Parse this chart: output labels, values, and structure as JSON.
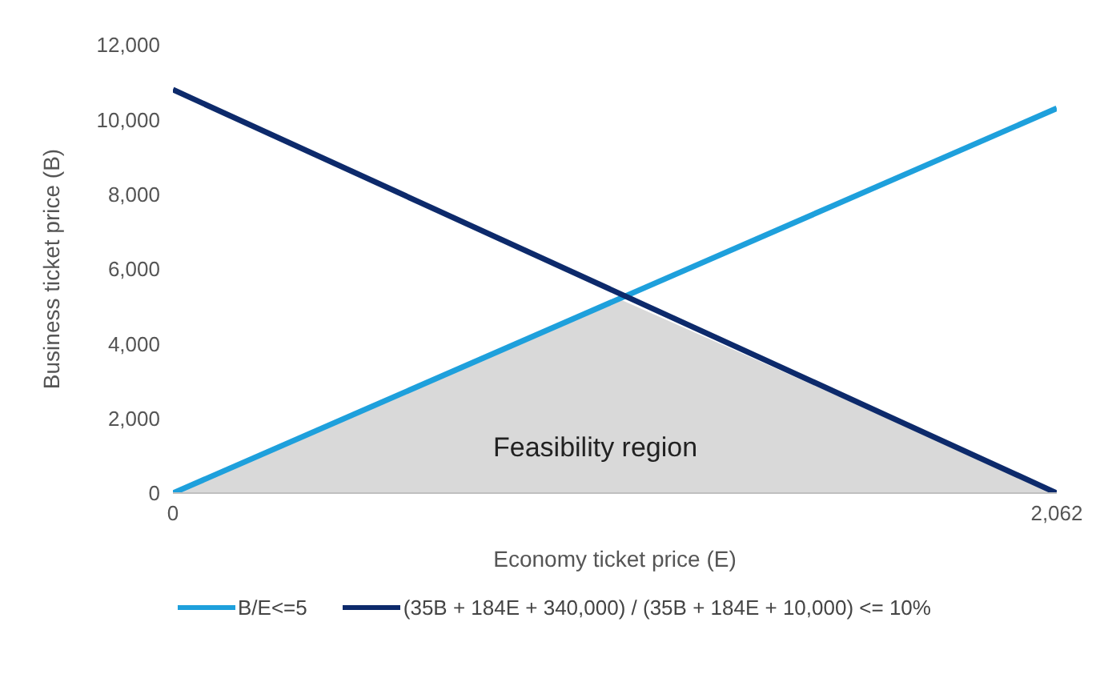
{
  "chart_data": {
    "type": "line",
    "xlabel": "Economy ticket price (E)",
    "ylabel": "Business ticket price (B)",
    "xlim": [
      0,
      2062
    ],
    "xticks": [
      0,
      {
        "value": 2062,
        "label": "2,062"
      }
    ],
    "ylim": [
      0,
      12000
    ],
    "yticks": [
      0,
      {
        "value": 2000,
        "label": "2,000"
      },
      {
        "value": 4000,
        "label": "4,000"
      },
      {
        "value": 6000,
        "label": "6,000"
      },
      {
        "value": 8000,
        "label": "8,000"
      },
      {
        "value": 10000,
        "label": "10,000"
      },
      {
        "value": 12000,
        "label": "12,000"
      }
    ],
    "grid": false,
    "legend": "bottom",
    "marker": "none",
    "line_style": "solid",
    "annotations": [
      "Feasibility region"
    ],
    "series": [
      {
        "type": "area",
        "color": "#d9d9d9",
        "x": [
          0,
          1040,
          2062
        ],
        "values": [
          0,
          5200,
          0
        ]
      },
      {
        "name": "B/E<=5",
        "color": "#1ea0dc",
        "x": [
          0,
          2062
        ],
        "values": [
          0,
          10300
        ]
      },
      {
        "name": "(35B + 184E + 340,000) / (35B + 184E + 10,000) <= 10%",
        "color": "#0d2a6b",
        "x": [
          0,
          2062
        ],
        "values": [
          10800,
          0
        ]
      }
    ]
  }
}
